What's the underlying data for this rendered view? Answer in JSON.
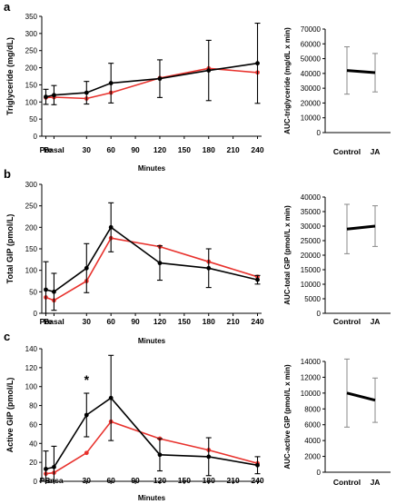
{
  "chart_data": [
    {
      "panel": "a",
      "type": "line",
      "x": [
        "Pre",
        "Basal",
        "30",
        "60",
        "90",
        "120",
        "150",
        "180",
        "210",
        "240"
      ],
      "xpos": [
        -20,
        -10,
        30,
        60,
        90,
        120,
        150,
        180,
        210,
        240
      ],
      "xlabel": "Minutes",
      "ylabel": "Triglyceride (mg/dL)",
      "ylim": [
        0,
        350
      ],
      "yticks": [
        0,
        50,
        100,
        150,
        200,
        250,
        300,
        350
      ],
      "series": [
        {
          "color": "#000000",
          "points": [
            {
              "x": -20,
              "y": 115,
              "err": 22
            },
            {
              "x": -10,
              "y": 120,
              "err": 28
            },
            {
              "x": 30,
              "y": 127,
              "err": 33
            },
            {
              "x": 60,
              "y": 155,
              "err": 58
            },
            {
              "x": 120,
              "y": 168,
              "err": 55
            },
            {
              "x": 180,
              "y": 192,
              "err": 88
            },
            {
              "x": 240,
              "y": 213,
              "err": 117
            }
          ]
        },
        {
          "color": "#e8322d",
          "points": [
            {
              "x": -20,
              "y": 113,
              "err": 0
            },
            {
              "x": -10,
              "y": 114,
              "err": 0
            },
            {
              "x": 30,
              "y": 110,
              "err": 0
            },
            {
              "x": 60,
              "y": 127,
              "err": 0
            },
            {
              "x": 120,
              "y": 170,
              "err": 0
            },
            {
              "x": 180,
              "y": 198,
              "err": 0
            },
            {
              "x": 240,
              "y": 186,
              "err": 0
            }
          ]
        }
      ]
    },
    {
      "panel": "a",
      "type": "line",
      "categories": [
        "Control",
        "JA"
      ],
      "ylabel": "AUC-triglyceride (mg/dL x min)",
      "ylim": [
        0,
        70000
      ],
      "yticks": [
        0,
        10000,
        20000,
        30000,
        40000,
        50000,
        60000,
        70000
      ],
      "values": [
        42000,
        40500
      ],
      "errors": [
        16000,
        13000
      ]
    },
    {
      "panel": "b",
      "type": "line",
      "x": [
        "Pre",
        "Basal",
        "30",
        "60",
        "90",
        "120",
        "150",
        "180",
        "210",
        "240"
      ],
      "xpos": [
        -20,
        -10,
        30,
        60,
        90,
        120,
        150,
        180,
        210,
        240
      ],
      "xlabel": "Minutes",
      "ylabel": "Total GIP (pmol/L)",
      "ylim": [
        0,
        300
      ],
      "yticks": [
        0,
        50,
        100,
        150,
        200,
        250,
        300
      ],
      "series": [
        {
          "color": "#000000",
          "points": [
            {
              "x": -20,
              "y": 55,
              "err": 65
            },
            {
              "x": -10,
              "y": 50,
              "err": 43
            },
            {
              "x": 30,
              "y": 105,
              "err": 57
            },
            {
              "x": 60,
              "y": 200,
              "err": 57
            },
            {
              "x": 120,
              "y": 117,
              "err": 40
            },
            {
              "x": 180,
              "y": 105,
              "err": 45
            },
            {
              "x": 240,
              "y": 78,
              "err": 10
            }
          ]
        },
        {
          "color": "#e8322d",
          "points": [
            {
              "x": -20,
              "y": 37,
              "err": 0
            },
            {
              "x": -10,
              "y": 30,
              "err": 0
            },
            {
              "x": 30,
              "y": 75,
              "err": 0
            },
            {
              "x": 60,
              "y": 175,
              "err": 0
            },
            {
              "x": 120,
              "y": 155,
              "err": 0
            },
            {
              "x": 180,
              "y": 120,
              "err": 0
            },
            {
              "x": 240,
              "y": 85,
              "err": 0
            }
          ]
        }
      ]
    },
    {
      "panel": "b",
      "type": "line",
      "categories": [
        "Control",
        "JA"
      ],
      "ylabel": "AUC-total GIP (pmol/L x min)",
      "ylim": [
        0,
        40000
      ],
      "yticks": [
        0,
        5000,
        10000,
        15000,
        20000,
        25000,
        30000,
        35000,
        40000
      ],
      "values": [
        29000,
        30000
      ],
      "errors": [
        8500,
        7000
      ]
    },
    {
      "panel": "c",
      "type": "line",
      "x": [
        "Pre",
        "Basa",
        "30",
        "60",
        "90",
        "120",
        "150",
        "180",
        "210",
        "240"
      ],
      "xpos": [
        -20,
        -10,
        30,
        60,
        90,
        120,
        150,
        180,
        210,
        240
      ],
      "xlabel": "Minutes",
      "ylabel": "Active GIP (pmol/L)",
      "ylim": [
        0,
        140
      ],
      "yticks": [
        0,
        20,
        40,
        60,
        80,
        100,
        120,
        140
      ],
      "annotation": "*",
      "series": [
        {
          "color": "#000000",
          "points": [
            {
              "x": -20,
              "y": 13,
              "err": 19
            },
            {
              "x": -10,
              "y": 15,
              "err": 22
            },
            {
              "x": 30,
              "y": 70,
              "err": 23
            },
            {
              "x": 60,
              "y": 88,
              "err": 45
            },
            {
              "x": 120,
              "y": 28,
              "err": 17
            },
            {
              "x": 180,
              "y": 26,
              "err": 20
            },
            {
              "x": 240,
              "y": 17,
              "err": 9
            }
          ]
        },
        {
          "color": "#e8322d",
          "points": [
            {
              "x": -20,
              "y": 8,
              "err": 0
            },
            {
              "x": -10,
              "y": 9,
              "err": 0
            },
            {
              "x": 30,
              "y": 30,
              "err": 0
            },
            {
              "x": 60,
              "y": 63,
              "err": 0
            },
            {
              "x": 120,
              "y": 45,
              "err": 0
            },
            {
              "x": 180,
              "y": 33,
              "err": 0
            },
            {
              "x": 240,
              "y": 19,
              "err": 0
            }
          ]
        }
      ]
    },
    {
      "panel": "c",
      "type": "line",
      "categories": [
        "Control",
        "JA"
      ],
      "ylabel": "AUC-active GIP (pmol/L x min)",
      "ylim": [
        0,
        14000
      ],
      "yticks": [
        0,
        2000,
        4000,
        6000,
        8000,
        10000,
        12000,
        14000
      ],
      "values": [
        10000,
        9100
      ],
      "errors": [
        4300,
        2800
      ]
    }
  ]
}
